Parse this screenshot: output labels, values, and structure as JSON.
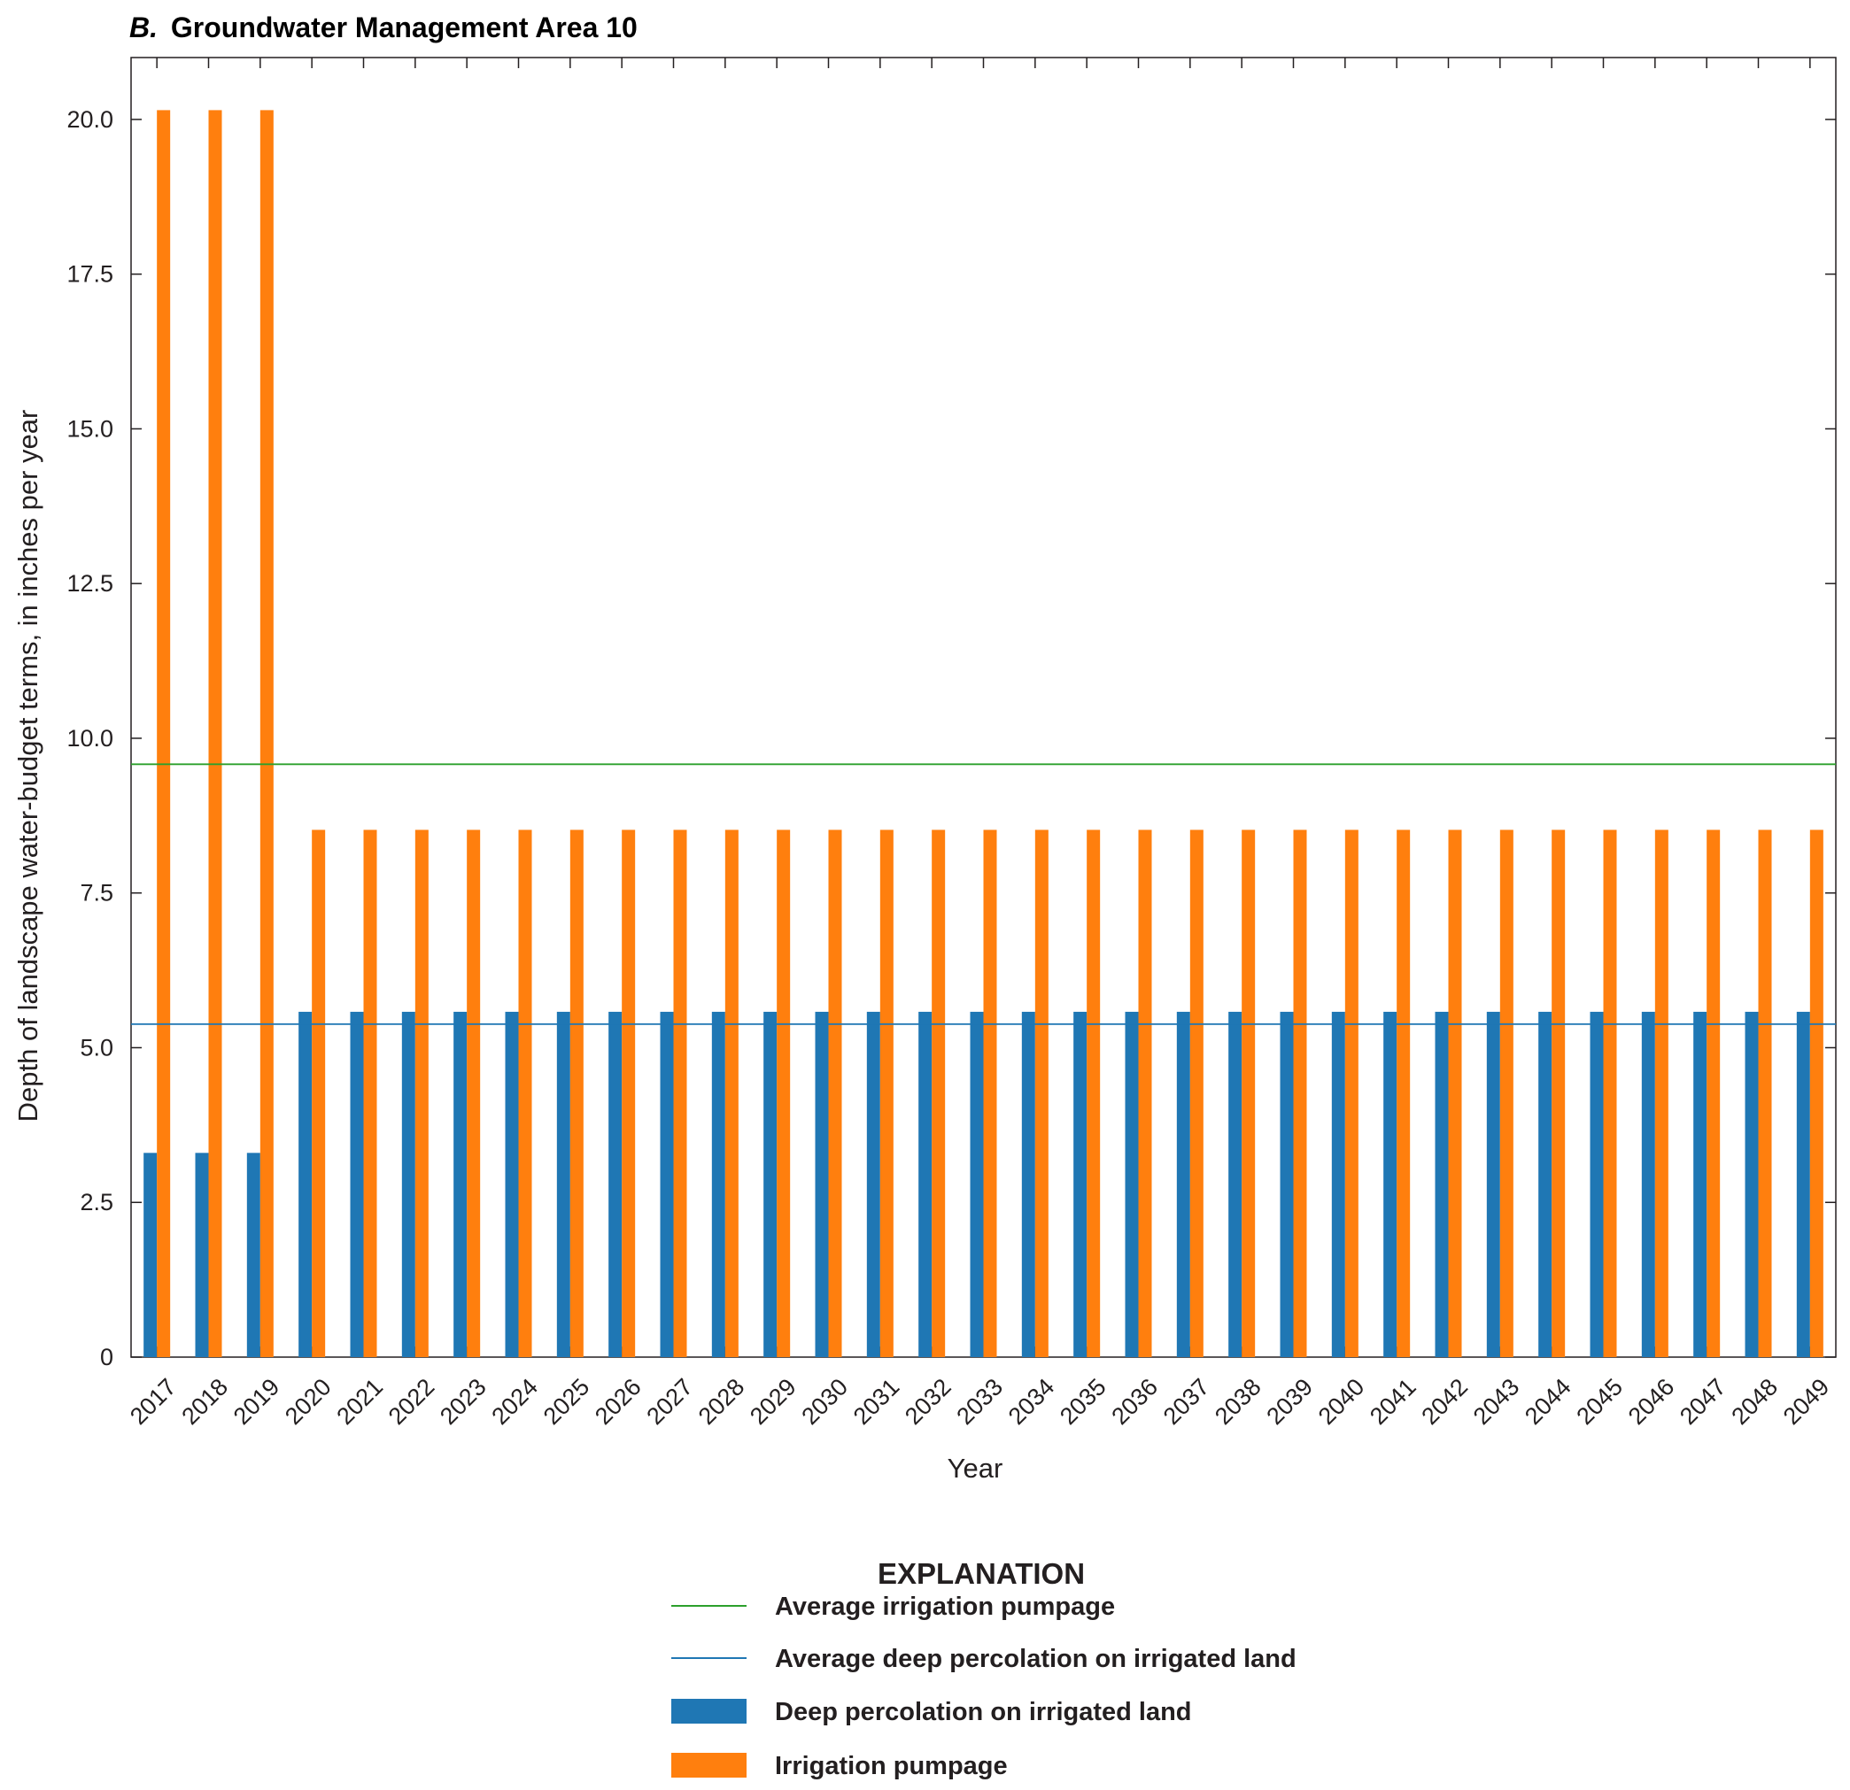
{
  "chart_data": {
    "type": "bar",
    "title_lead": "B.",
    "title": "Groundwater Management Area 10",
    "xlabel": "Year",
    "ylabel": "Depth of landscape water-budget terms, in inches per year",
    "ylim": [
      0,
      21
    ],
    "yticks": [
      "0",
      "2.5",
      "5.0",
      "7.5",
      "10.0",
      "12.5",
      "15.0",
      "17.5",
      "20.0"
    ],
    "ytick_values": [
      0,
      2.5,
      5.0,
      7.5,
      10.0,
      12.5,
      15.0,
      17.5,
      20.0
    ],
    "categories": [
      "2017",
      "2018",
      "2019",
      "2020",
      "2021",
      "2022",
      "2023",
      "2024",
      "2025",
      "2026",
      "2027",
      "2028",
      "2029",
      "2030",
      "2031",
      "2032",
      "2033",
      "2034",
      "2035",
      "2036",
      "2037",
      "2038",
      "2039",
      "2040",
      "2041",
      "2042",
      "2043",
      "2044",
      "2045",
      "2046",
      "2047",
      "2048",
      "2049"
    ],
    "series": [
      {
        "name": "Deep percolation on irrigated land",
        "color": "#1f77b4",
        "values": [
          3.3,
          3.3,
          3.3,
          5.58,
          5.58,
          5.58,
          5.58,
          5.58,
          5.58,
          5.58,
          5.58,
          5.58,
          5.58,
          5.58,
          5.58,
          5.58,
          5.58,
          5.58,
          5.58,
          5.58,
          5.58,
          5.58,
          5.58,
          5.58,
          5.58,
          5.58,
          5.58,
          5.58,
          5.58,
          5.58,
          5.58,
          5.58,
          5.58
        ]
      },
      {
        "name": "Irrigation pumpage",
        "color": "#ff7f0e",
        "values": [
          20.15,
          20.15,
          20.15,
          8.52,
          8.52,
          8.52,
          8.52,
          8.52,
          8.52,
          8.52,
          8.52,
          8.52,
          8.52,
          8.52,
          8.52,
          8.52,
          8.52,
          8.52,
          8.52,
          8.52,
          8.52,
          8.52,
          8.52,
          8.52,
          8.52,
          8.52,
          8.52,
          8.52,
          8.52,
          8.52,
          8.52,
          8.52,
          8.52
        ]
      }
    ],
    "reference_lines": [
      {
        "name": "Average irrigation pumpage",
        "value": 9.58,
        "color": "#2ca02c"
      },
      {
        "name": "Average deep percolation on irrigated land",
        "value": 5.38,
        "color": "#1f77b4"
      }
    ],
    "grid": false,
    "legend": {
      "heading": "EXPLANATION",
      "placement": "bottom-center",
      "items": [
        {
          "label": "Average irrigation pumpage",
          "kind": "line",
          "color": "#2ca02c"
        },
        {
          "label": "Average deep percolation on irrigated land",
          "kind": "line",
          "color": "#1f77b4"
        },
        {
          "label": "Deep percolation on irrigated land",
          "kind": "box",
          "color": "#1f77b4"
        },
        {
          "label": "Irrigation pumpage",
          "kind": "box",
          "color": "#ff7f0e"
        }
      ]
    }
  }
}
